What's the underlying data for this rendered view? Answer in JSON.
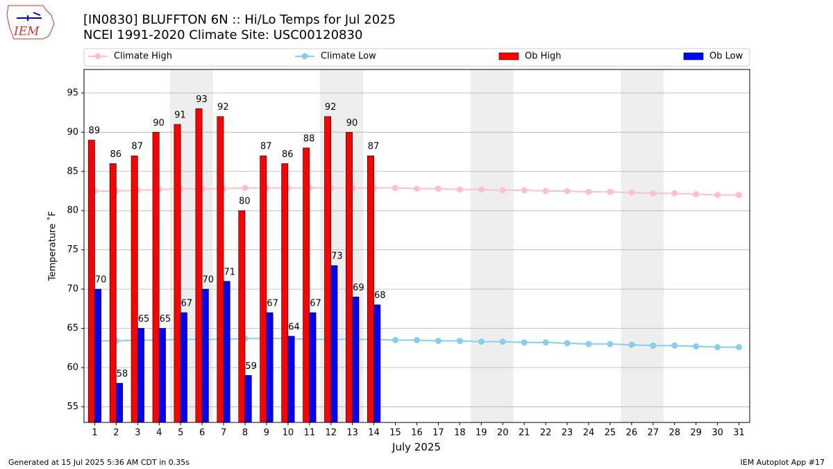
{
  "chart_data": {
    "type": "bar",
    "title": "[IN0830] BLUFFTON 6N :: Hi/Lo Temps for Jul 2025",
    "subtitle": "NCEI 1991-2020 Climate Site: USC00120830",
    "xlabel": "July 2025",
    "ylabel": "Temperature ˚F",
    "logo_text": "IEM",
    "footer_left": "Generated at 15 Jul 2025 5:36 AM CDT in 0.35s",
    "footer_right": "IEM Autoplot App #17",
    "x": [
      1,
      2,
      3,
      4,
      5,
      6,
      7,
      8,
      9,
      10,
      11,
      12,
      13,
      14,
      15,
      16,
      17,
      18,
      19,
      20,
      21,
      22,
      23,
      24,
      25,
      26,
      27,
      28,
      29,
      30,
      31
    ],
    "xlim": [
      0.5,
      31.5
    ],
    "xticks": [
      1,
      2,
      3,
      4,
      5,
      6,
      7,
      8,
      9,
      10,
      11,
      12,
      13,
      14,
      15,
      16,
      17,
      18,
      19,
      20,
      21,
      22,
      23,
      24,
      25,
      26,
      27,
      28,
      29,
      30,
      31
    ],
    "ylim": [
      53,
      98
    ],
    "yticks": [
      55,
      60,
      65,
      70,
      75,
      80,
      85,
      90,
      95
    ],
    "grid": true,
    "shaded_spans": [
      [
        4.5,
        6.5
      ],
      [
        11.5,
        13.5
      ],
      [
        18.5,
        20.5
      ],
      [
        25.5,
        27.5
      ]
    ],
    "shade_color": "#eeeeee",
    "series": [
      {
        "name": "Climate High",
        "type": "line",
        "color": "#ffc0cb",
        "values": [
          82.5,
          82.5,
          82.6,
          82.7,
          82.8,
          82.8,
          82.8,
          82.9,
          82.9,
          82.9,
          82.9,
          82.9,
          82.9,
          82.9,
          82.9,
          82.8,
          82.8,
          82.7,
          82.7,
          82.6,
          82.6,
          82.5,
          82.5,
          82.4,
          82.4,
          82.3,
          82.2,
          82.2,
          82.1,
          82.0,
          82.0
        ]
      },
      {
        "name": "Climate Low",
        "type": "line",
        "color": "#87ceeb",
        "values": [
          63.4,
          63.4,
          63.5,
          63.5,
          63.6,
          63.6,
          63.6,
          63.7,
          63.7,
          63.7,
          63.6,
          63.6,
          63.6,
          63.6,
          63.5,
          63.5,
          63.4,
          63.4,
          63.3,
          63.3,
          63.2,
          63.2,
          63.1,
          63.0,
          63.0,
          62.9,
          62.8,
          62.8,
          62.7,
          62.6,
          62.6
        ]
      },
      {
        "name": "Ob High",
        "type": "bar",
        "color": "#ff0000",
        "values": [
          89,
          86,
          87,
          90,
          91,
          93,
          92,
          80,
          87,
          86,
          88,
          92,
          90,
          87,
          null,
          null,
          null,
          null,
          null,
          null,
          null,
          null,
          null,
          null,
          null,
          null,
          null,
          null,
          null,
          null,
          null
        ]
      },
      {
        "name": "Ob Low",
        "type": "bar",
        "color": "#0000ff",
        "values": [
          70,
          58,
          65,
          65,
          67,
          70,
          71,
          59,
          67,
          64,
          67,
          73,
          69,
          68,
          null,
          null,
          null,
          null,
          null,
          null,
          null,
          null,
          null,
          null,
          null,
          null,
          null,
          null,
          null,
          null,
          null
        ]
      }
    ]
  }
}
